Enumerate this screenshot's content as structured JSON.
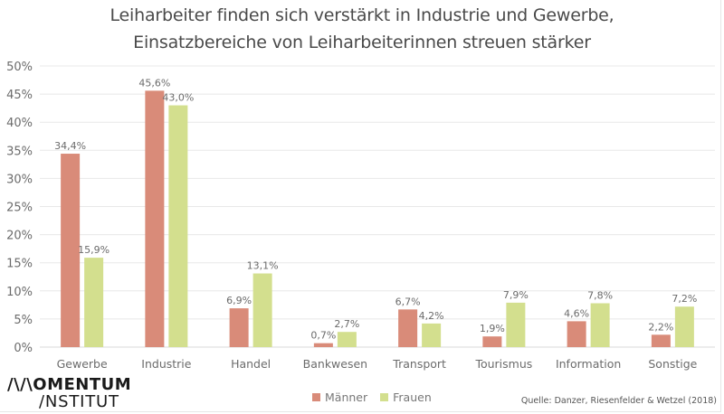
{
  "title": {
    "line1": "Leiharbeiter finden sich verstärkt in Industrie und Gewerbe,",
    "line2": "Einsatzbereiche von Leiharbeiterinnen streuen stärker"
  },
  "logo": {
    "line1": "/\\/\\OMENTUM",
    "line2": "/NSTITUT"
  },
  "legend": [
    {
      "label": "Männer",
      "color": "#d98b79"
    },
    {
      "label": "Frauen",
      "color": "#d3df8e"
    }
  ],
  "source": "Quelle: Danzer, Riesenfelder & Wetzel (2018)",
  "chart_data": {
    "type": "bar",
    "title": "Leiharbeiter finden sich verstärkt in Industrie und Gewerbe, Einsatzbereiche von Leiharbeiterinnen streuen stärker",
    "xlabel": "",
    "ylabel": "",
    "ylim": [
      0,
      50
    ],
    "yticks": [
      0,
      5,
      10,
      15,
      20,
      25,
      30,
      35,
      40,
      45,
      50
    ],
    "ytick_labels": [
      "0%",
      "5%",
      "10%",
      "15%",
      "20%",
      "25%",
      "30%",
      "35%",
      "40%",
      "45%",
      "50%"
    ],
    "grid": true,
    "legend_position": "bottom-center",
    "categories": [
      "Gewerbe",
      "Industrie",
      "Handel",
      "Bankwesen",
      "Transport",
      "Tourismus",
      "Information",
      "Sonstige"
    ],
    "series": [
      {
        "name": "Männer",
        "color": "#d98b79",
        "values": [
          34.4,
          45.6,
          6.9,
          0.7,
          6.7,
          1.9,
          4.6,
          2.2
        ],
        "labels": [
          "34,4%",
          "45,6%",
          "6,9%",
          "0,7%",
          "6,7%",
          "1,9%",
          "4,6%",
          "2,2%"
        ]
      },
      {
        "name": "Frauen",
        "color": "#d3df8e",
        "values": [
          15.9,
          43.0,
          13.1,
          2.7,
          4.2,
          7.9,
          7.8,
          7.2
        ],
        "labels": [
          "15,9%",
          "43,0%",
          "13,1%",
          "2,7%",
          "4,2%",
          "7,9%",
          "7,8%",
          "7,2%"
        ]
      }
    ]
  }
}
